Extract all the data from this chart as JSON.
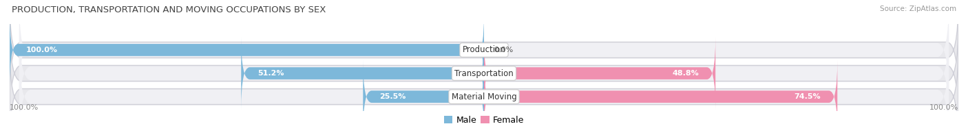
{
  "title": "PRODUCTION, TRANSPORTATION AND MOVING OCCUPATIONS BY SEX",
  "source": "Source: ZipAtlas.com",
  "categories": [
    "Production",
    "Transportation",
    "Material Moving"
  ],
  "male_values": [
    100.0,
    51.2,
    25.5
  ],
  "female_values": [
    0.0,
    48.8,
    74.5
  ],
  "male_color": "#7db8da",
  "female_color": "#f090b0",
  "bg_row_color": "#e8e8ec",
  "bg_inner_color": "#f0f0f4",
  "male_label": "Male",
  "female_label": "Female",
  "axis_left_label": "100.0%",
  "axis_right_label": "100.0%",
  "title_fontsize": 9.5,
  "source_fontsize": 7.5,
  "value_fontsize": 8.0,
  "cat_fontsize": 8.5,
  "legend_fontsize": 9.0,
  "fig_width": 14.06,
  "fig_height": 1.97,
  "dpi": 100
}
